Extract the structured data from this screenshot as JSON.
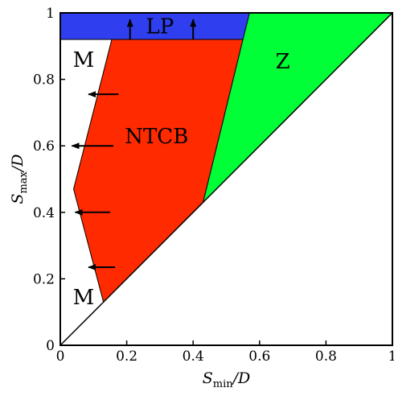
{
  "chart_data": {
    "type": "phase-diagram",
    "x_axis": {
      "label_main": "S",
      "label_sub": "min",
      "label_tail": "/D",
      "range": [
        0,
        1
      ],
      "ticks": [
        "0",
        "0.2",
        "0.4",
        "0.6",
        "0.8",
        "1"
      ],
      "tick_values": [
        0,
        0.2,
        0.4,
        0.6,
        0.8,
        1
      ]
    },
    "y_axis": {
      "label_main": "S",
      "label_sub": "max",
      "label_tail": "/D",
      "range": [
        0,
        1
      ],
      "ticks": [
        "0",
        "0.2",
        "0.4",
        "0.6",
        "0.8",
        "1"
      ],
      "tick_values": [
        0,
        0.2,
        0.4,
        0.6,
        0.8,
        1
      ]
    },
    "regions": [
      {
        "label": "LP",
        "color": "#2f3ff0",
        "polygon": [
          [
            0,
            0.92
          ],
          [
            0.57,
            0.92
          ],
          [
            0.57,
            1.0
          ],
          [
            0,
            1.0
          ]
        ]
      },
      {
        "label": "NTCB",
        "color": "#ff2a00",
        "polygon": [
          [
            0.155,
            0.92
          ],
          [
            0.55,
            0.92
          ],
          [
            0.43,
            0.43
          ],
          [
            0.13,
            0.13
          ],
          [
            0.04,
            0.47
          ]
        ]
      },
      {
        "label": "Z",
        "color": "#00ff36",
        "polygon": [
          [
            0.57,
            1.0
          ],
          [
            1.0,
            1.0
          ],
          [
            0.43,
            0.43
          ],
          [
            0.55,
            0.92
          ]
        ]
      },
      {
        "label": "M",
        "color": "#ffffff",
        "polygon": []
      },
      {
        "label": "M",
        "color": "#ffffff",
        "polygon": []
      }
    ],
    "region_labels": [
      {
        "text": "LP",
        "x": 0.3,
        "y": 0.96
      },
      {
        "text": "M",
        "x": 0.07,
        "y": 0.86
      },
      {
        "text": "Z",
        "x": 0.67,
        "y": 0.855
      },
      {
        "text": "NTCB",
        "x": 0.29,
        "y": 0.63
      },
      {
        "text": "M",
        "x": 0.07,
        "y": 0.145
      }
    ],
    "arrows": [
      {
        "from": [
          0.21,
          0.92
        ],
        "to": [
          0.21,
          0.98
        ]
      },
      {
        "from": [
          0.4,
          0.92
        ],
        "to": [
          0.4,
          0.98
        ]
      },
      {
        "from": [
          0.175,
          0.755
        ],
        "to": [
          0.085,
          0.755
        ]
      },
      {
        "from": [
          0.16,
          0.6
        ],
        "to": [
          0.035,
          0.6
        ]
      },
      {
        "from": [
          0.15,
          0.4
        ],
        "to": [
          0.045,
          0.4
        ]
      },
      {
        "from": [
          0.165,
          0.235
        ],
        "to": [
          0.085,
          0.235
        ]
      }
    ],
    "lines": [
      {
        "from": [
          0,
          0
        ],
        "to": [
          1,
          1
        ]
      }
    ]
  }
}
